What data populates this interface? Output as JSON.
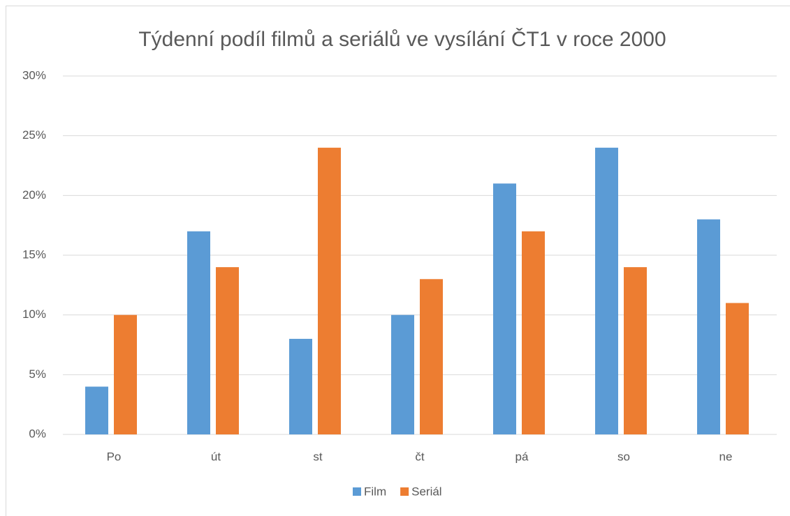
{
  "chart_data": {
    "type": "bar",
    "title": "Týdenní podíl filmů a seriálů ve vysílání ČT1 v roce 2000",
    "categories": [
      "Po",
      "út",
      "st",
      "čt",
      "pá",
      "so",
      "ne"
    ],
    "series": [
      {
        "name": "Film",
        "color": "#5b9bd5",
        "values": [
          4,
          17,
          8,
          10,
          21,
          24,
          18
        ]
      },
      {
        "name": "Seriál",
        "color": "#ed7d31",
        "values": [
          10,
          14,
          24,
          13,
          17,
          14,
          11
        ]
      }
    ],
    "ylim": [
      0,
      30
    ],
    "yticks": [
      {
        "value": 0,
        "label": "0%"
      },
      {
        "value": 5,
        "label": "5%"
      },
      {
        "value": 10,
        "label": "10%"
      },
      {
        "value": 15,
        "label": "15%"
      },
      {
        "value": 20,
        "label": "20%"
      },
      {
        "value": 25,
        "label": "25%"
      },
      {
        "value": 30,
        "label": "30%"
      }
    ],
    "grid": true,
    "legend": "bottom"
  }
}
